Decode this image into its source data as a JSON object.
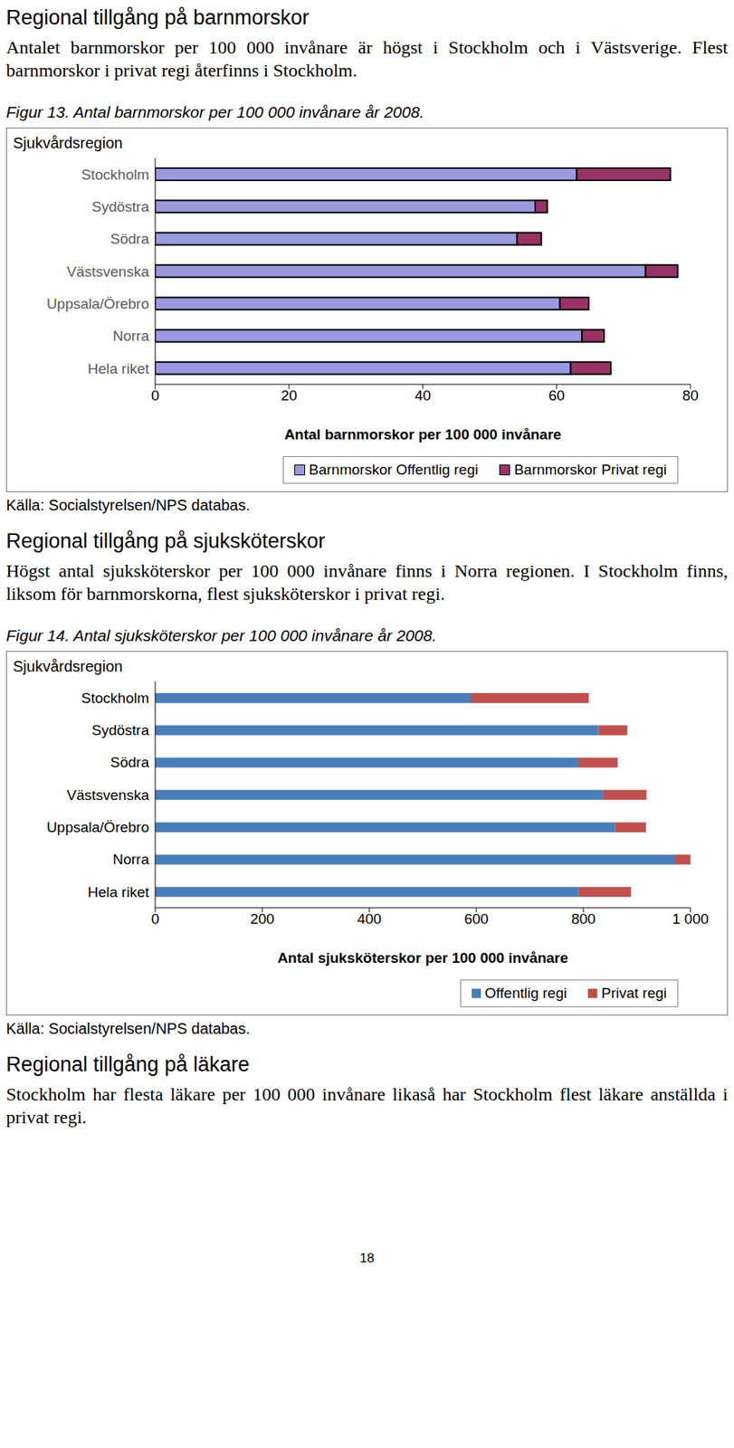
{
  "document": {
    "sections": [
      {
        "heading": "Regional tillgång på barnmorskor",
        "text": "Antalet barnmorskor per 100 000 invånare är högst i Stockholm och i Västsverige. Flest barnmorskor i privat regi återfinns i Stockholm.",
        "chart": 0,
        "source": "Källa: Socialstyrelsen/NPS databas."
      },
      {
        "heading": "Regional tillgång på sjuksköterskor",
        "text": "Högst antal sjuksköterskor per 100 000 invånare finns i Norra regionen. I Stockholm finns, liksom för barnmorskorna, flest sjuksköterskor i privat regi.",
        "chart": 1,
        "source": "Källa: Socialstyrelsen/NPS databas."
      },
      {
        "heading": "Regional tillgång på läkare",
        "text": "Stockholm har flesta läkare per 100 000 invånare likaså har Stockholm flest läkare anställda i privat regi."
      }
    ],
    "page_number": "18"
  },
  "chart_data": [
    {
      "type": "bar",
      "title": "Figur 13. Antal barnmorskor per 100 000 invånare år 2008.",
      "x_label": "Antal barnmorskor per 100 000 invånare",
      "y_label": "Sjukvårdsregion",
      "orientation": "horizontal",
      "stacked": true,
      "legend": "bottom",
      "grid": false,
      "categories": [
        "Stockholm",
        "Sydöstra",
        "Södra",
        "Västsvenska",
        "Uppsala/Örebro",
        "Norra",
        "Hela riket"
      ],
      "series": [
        {
          "name": "Barnmorskor Offentlig regi",
          "color": "#9999dd",
          "values": [
            63,
            56.8,
            54.1,
            73.3,
            60.5,
            63.8,
            62.1
          ]
        },
        {
          "name": "Barnmorskor Privat regi",
          "color": "#993366",
          "values": [
            14,
            1.8,
            3.6,
            4.8,
            4.3,
            3.3,
            6
          ]
        }
      ],
      "xlim": [
        0,
        80
      ],
      "xticks": [
        0,
        20,
        40,
        60,
        80
      ]
    },
    {
      "type": "bar",
      "title": "Figur 14. Antal sjuksköterskor per 100 000 invånare år 2008.",
      "x_label": "Antal sjuksköterskor per 100 000 invånare",
      "y_label": "Sjukvårdsregion",
      "orientation": "horizontal",
      "stacked": true,
      "legend": "bottom",
      "grid": false,
      "categories": [
        "Stockholm",
        "Sydöstra",
        "Södra",
        "Västsvenska",
        "Uppsala/Örebro",
        "Norra",
        "Hela riket"
      ],
      "series": [
        {
          "name": "Offentlig regi",
          "color": "#4a7ebb",
          "values": [
            590,
            828,
            790,
            837,
            859,
            970,
            791
          ]
        },
        {
          "name": "Privat regi",
          "color": "#c0504d",
          "values": [
            220,
            54,
            74,
            81,
            58,
            30,
            98
          ]
        }
      ],
      "xlim": [
        0,
        1000
      ],
      "xticks": [
        0,
        200,
        400,
        600,
        800,
        {
          "value": 1000,
          "label": "1 000"
        }
      ]
    }
  ]
}
